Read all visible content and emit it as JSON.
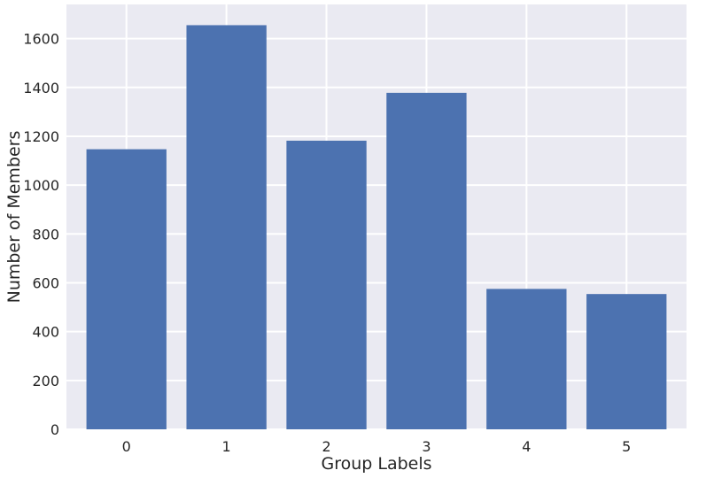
{
  "chart_data": {
    "type": "bar",
    "categories": [
      "0",
      "1",
      "2",
      "3",
      "4",
      "5"
    ],
    "values": [
      1147,
      1655,
      1182,
      1378,
      575,
      554
    ],
    "title": "",
    "xlabel": "Group Labels",
    "ylabel": "Number of Members",
    "ylim": [
      0,
      1740
    ],
    "yticks": [
      0,
      200,
      400,
      600,
      800,
      1000,
      1200,
      1400,
      1600
    ],
    "grid": true,
    "bar_color": "#4c72b0",
    "background_color": "#eaeaf2",
    "grid_color": "#ffffff"
  }
}
